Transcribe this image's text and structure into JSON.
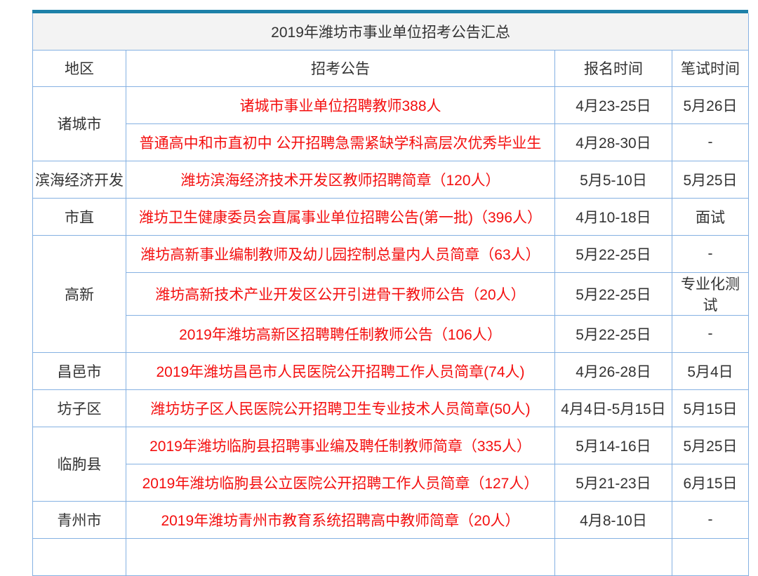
{
  "colors": {
    "accent_bar": "#1d80a8",
    "table_border": "#85b1e2",
    "link_red": "#f40f0f",
    "body_text": "#333333",
    "title_background": "#f3f3f3"
  },
  "table": {
    "title": "2019年潍坊市事业单位招考公告汇总",
    "columns": [
      "地区",
      "招考公告",
      "报名时间",
      "笔试时间"
    ],
    "rows": [
      {
        "region": "诸城市",
        "region_rowspan": 2,
        "announcement": "诸城市事业单位招聘教师388人",
        "reg_time": "4月23-25日",
        "exam_time": "5月26日"
      },
      {
        "announcement": "普通高中和市直初中 公开招聘急需紧缺学科高层次优秀毕业生",
        "reg_time": "4月28-30日",
        "exam_time": "-"
      },
      {
        "region": "滨海经济开发",
        "region_rowspan": 1,
        "announcement": "潍坊滨海经济技术开发区教师招聘简章（120人）",
        "reg_time": "5月5-10日",
        "exam_time": "5月25日"
      },
      {
        "region": "市直",
        "region_rowspan": 1,
        "announcement": "潍坊卫生健康委员会直属事业单位招聘公告(第一批)（396人）",
        "reg_time": "4月10-18日",
        "exam_time": "面试"
      },
      {
        "region": "高新",
        "region_rowspan": 3,
        "announcement": "潍坊高新事业编制教师及幼儿园控制总量内人员简章（63人）",
        "reg_time": "5月22-25日",
        "exam_time": "-"
      },
      {
        "announcement": "潍坊高新技术产业开发区公开引进骨干教师公告（20人）",
        "reg_time": "5月22-25日",
        "exam_time": "专业化测试"
      },
      {
        "announcement": "2019年潍坊高新区招聘聘任制教师公告（106人）",
        "reg_time": "5月22-25日",
        "exam_time": "-"
      },
      {
        "region": "昌邑市",
        "region_rowspan": 1,
        "announcement": "2019年潍坊昌邑市人民医院公开招聘工作人员简章(74人)",
        "reg_time": "4月26-28日",
        "exam_time": "5月4日"
      },
      {
        "region": "坊子区",
        "region_rowspan": 1,
        "announcement": "潍坊坊子区人民医院公开招聘卫生专业技术人员简章(50人)",
        "reg_time": "4月4日-5月15日",
        "exam_time": "5月15日"
      },
      {
        "region": "临朐县",
        "region_rowspan": 2,
        "announcement": "2019年潍坊临朐县招聘事业编及聘任制教师简章（335人）",
        "reg_time": "5月14-16日",
        "exam_time": "5月25日"
      },
      {
        "announcement": "2019年潍坊临朐县公立医院公开招聘工作人员简章（127人）",
        "reg_time": "5月21-23日",
        "exam_time": "6月15日"
      },
      {
        "region": "青州市",
        "region_rowspan": 1,
        "announcement": "2019年潍坊青州市教育系统招聘高中教师简章（20人）",
        "reg_time": "4月8-10日",
        "exam_time": "-"
      },
      {
        "region": "",
        "region_rowspan": 1,
        "announcement": "",
        "reg_time": "",
        "exam_time": ""
      }
    ]
  }
}
